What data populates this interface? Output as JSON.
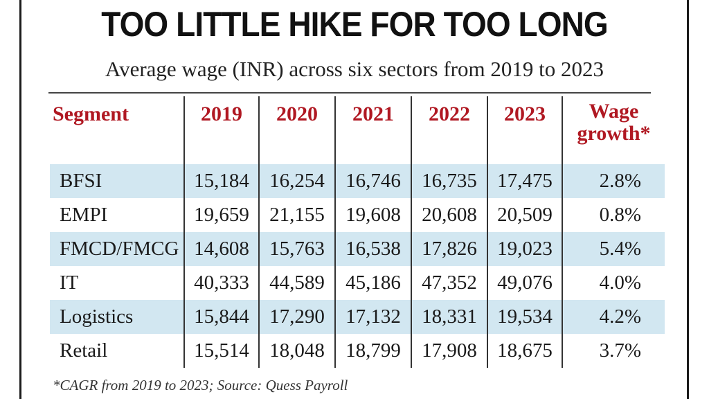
{
  "title": "TOO LITTLE HIKE FOR TOO LONG",
  "subtitle": "Average wage (INR) across six sectors from 2019 to 2023",
  "headers": {
    "segment": "Segment",
    "years": [
      "2019",
      "2020",
      "2021",
      "2022",
      "2023"
    ],
    "growth_line1": "Wage",
    "growth_line2": "growth*"
  },
  "rows": [
    {
      "segment": "BFSI",
      "values": [
        "15,184",
        "16,254",
        "16,746",
        "16,735",
        "17,475"
      ],
      "growth": "2.8%"
    },
    {
      "segment": "EMPI",
      "values": [
        "19,659",
        "21,155",
        "19,608",
        "20,608",
        "20,509"
      ],
      "growth": "0.8%"
    },
    {
      "segment": "FMCD/FMCG",
      "values": [
        "14,608",
        "15,763",
        "16,538",
        "17,826",
        "19,023"
      ],
      "growth": "5.4%"
    },
    {
      "segment": "IT",
      "values": [
        "40,333",
        "44,589",
        "45,186",
        "47,352",
        "49,076"
      ],
      "growth": "4.0%"
    },
    {
      "segment": "Logistics",
      "values": [
        "15,844",
        "17,290",
        "17,132",
        "18,331",
        "19,534"
      ],
      "growth": "4.2%"
    },
    {
      "segment": "Retail",
      "values": [
        "15,514",
        "18,048",
        "18,799",
        "17,908",
        "18,675"
      ],
      "growth": "3.7%"
    }
  ],
  "footnote": "*CAGR from 2019 to 2023; Source: Quess Payroll",
  "colors": {
    "header_text": "#b01822",
    "row_shade": "#d2e7f1",
    "body_text": "#1a1a1a"
  },
  "chart_data": {
    "type": "table",
    "title": "TOO LITTLE HIKE FOR TOO LONG",
    "subtitle": "Average wage (INR) across six sectors from 2019 to 2023",
    "columns": [
      "Segment",
      "2019",
      "2020",
      "2021",
      "2022",
      "2023",
      "Wage growth*"
    ],
    "categories": [
      "2019",
      "2020",
      "2021",
      "2022",
      "2023"
    ],
    "series": [
      {
        "name": "BFSI",
        "values": [
          15184,
          16254,
          16746,
          16735,
          17475
        ],
        "wage_growth_pct": 2.8
      },
      {
        "name": "EMPI",
        "values": [
          19659,
          21155,
          19608,
          20608,
          20509
        ],
        "wage_growth_pct": 0.8
      },
      {
        "name": "FMCD/FMCG",
        "values": [
          14608,
          15763,
          16538,
          17826,
          19023
        ],
        "wage_growth_pct": 5.4
      },
      {
        "name": "IT",
        "values": [
          40333,
          44589,
          45186,
          47352,
          49076
        ],
        "wage_growth_pct": 4.0
      },
      {
        "name": "Logistics",
        "values": [
          15844,
          17290,
          17132,
          18331,
          19534
        ],
        "wage_growth_pct": 4.2
      },
      {
        "name": "Retail",
        "values": [
          15514,
          18048,
          18799,
          17908,
          18675
        ],
        "wage_growth_pct": 3.7
      }
    ],
    "footnote": "*CAGR from 2019 to 2023; Source: Quess Payroll"
  }
}
